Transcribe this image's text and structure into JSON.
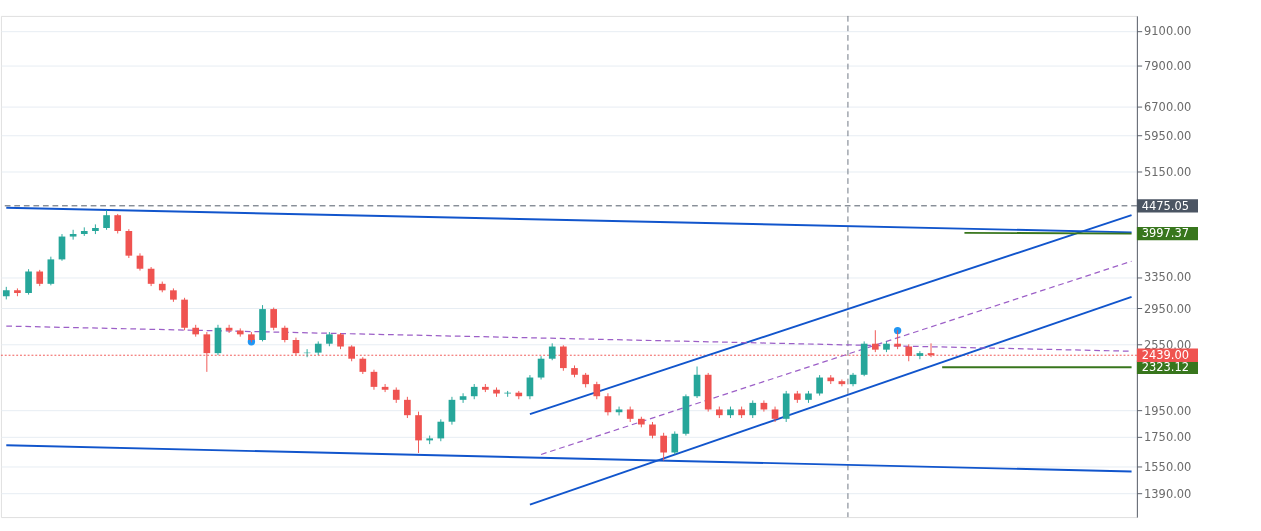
{
  "chart_data": {
    "type": "candlestick",
    "log": "y",
    "grid": "y",
    "tick_labels": "y",
    "categories": [
      null,
      null,
      null,
      null,
      null,
      null,
      null,
      null,
      null,
      null,
      null,
      null,
      null,
      null,
      null,
      null,
      null,
      null,
      null,
      null,
      null,
      null,
      null,
      null,
      null,
      null,
      null,
      null,
      null,
      null,
      null,
      null,
      null,
      null,
      null,
      null,
      null,
      null,
      null,
      null,
      null,
      null,
      null,
      null,
      null,
      null,
      null,
      null,
      null,
      null,
      null,
      null,
      null,
      null,
      null,
      null,
      null,
      null,
      null,
      null,
      null,
      null,
      null,
      null,
      null,
      null,
      null,
      null,
      null,
      null,
      null,
      null,
      null,
      null,
      null,
      null,
      null,
      null,
      null,
      null,
      null,
      null,
      null,
      null,
      null,
      null,
      null,
      null,
      null,
      null,
      null,
      null,
      null,
      null,
      null,
      null,
      null,
      null,
      null,
      null,
      null,
      null
    ],
    "ylim": [
      1264,
      9678
    ],
    "yticks": [
      {
        "value": 1390,
        "label": "1390.00"
      },
      {
        "value": 1550,
        "label": "1550.00"
      },
      {
        "value": 1750,
        "label": "1750.00"
      },
      {
        "value": 1950,
        "label": "1950.00"
      },
      {
        "value": 2550,
        "label": "2550.00"
      },
      {
        "value": 2950,
        "label": "2950.00"
      },
      {
        "value": 3350,
        "label": "3350.00"
      },
      {
        "value": 5150,
        "label": "5150.00"
      },
      {
        "value": 5950,
        "label": "5950.00"
      },
      {
        "value": 6700,
        "label": "6700.00"
      },
      {
        "value": 7900,
        "label": "7900.00"
      },
      {
        "value": 9100,
        "label": "9100.00"
      }
    ],
    "ref_lines": [
      {
        "axis": "y",
        "value": 4475.05,
        "label": "4475.05",
        "color": "#4b5563",
        "line_style": "dashed"
      },
      {
        "axis": "y",
        "value": 2439,
        "label": "2439.00",
        "color": "#ef5350",
        "line_style": "dotted"
      }
    ],
    "series": [
      {
        "ohlc": [
          [
            3100,
            3220,
            3060,
            3175
          ],
          [
            3175,
            3200,
            3100,
            3140
          ],
          [
            3140,
            3460,
            3120,
            3427
          ],
          [
            3427,
            3450,
            3230,
            3260
          ],
          [
            3260,
            3640,
            3240,
            3600
          ],
          [
            3600,
            3990,
            3580,
            3950
          ],
          [
            3950,
            4060,
            3900,
            3991
          ],
          [
            3991,
            4100,
            3960,
            4040
          ],
          [
            4040,
            4150,
            3990,
            4090
          ],
          [
            4090,
            4400,
            4060,
            4308
          ],
          [
            4308,
            4330,
            4000,
            4040
          ],
          [
            4040,
            4070,
            3620,
            3655
          ],
          [
            3655,
            3690,
            3440,
            3466
          ],
          [
            3466,
            3490,
            3230,
            3260
          ],
          [
            3260,
            3290,
            3150,
            3175
          ],
          [
            3175,
            3200,
            3030,
            3057
          ],
          [
            3057,
            3080,
            2700,
            2727
          ],
          [
            2727,
            2760,
            2630,
            2655
          ],
          [
            2655,
            2680,
            2280,
            2460
          ],
          [
            2460,
            2760,
            2440,
            2727
          ],
          [
            2727,
            2760,
            2670,
            2696
          ],
          [
            2696,
            2720,
            2630,
            2655
          ],
          [
            2655,
            2680,
            2570,
            2595
          ],
          [
            2595,
            2990,
            2580,
            2942
          ],
          [
            2942,
            2960,
            2700,
            2727
          ],
          [
            2727,
            2750,
            2570,
            2595
          ],
          [
            2595,
            2620,
            2440,
            2460
          ],
          [
            2460,
            2500,
            2420,
            2465
          ],
          [
            2465,
            2580,
            2440,
            2556
          ],
          [
            2556,
            2680,
            2530,
            2655
          ],
          [
            2655,
            2670,
            2500,
            2527
          ],
          [
            2527,
            2540,
            2380,
            2405
          ],
          [
            2405,
            2420,
            2260,
            2280
          ],
          [
            2280,
            2300,
            2120,
            2145
          ],
          [
            2145,
            2170,
            2100,
            2120
          ],
          [
            2120,
            2140,
            2010,
            2035
          ],
          [
            2035,
            2060,
            1890,
            1912
          ],
          [
            1912,
            1940,
            1640,
            1726
          ],
          [
            1726,
            1760,
            1700,
            1740
          ],
          [
            1740,
            1880,
            1720,
            1862
          ],
          [
            1862,
            2060,
            1840,
            2035
          ],
          [
            2035,
            2090,
            2010,
            2065
          ],
          [
            2065,
            2170,
            2040,
            2145
          ],
          [
            2145,
            2170,
            2100,
            2120
          ],
          [
            2120,
            2140,
            2060,
            2088
          ],
          [
            2088,
            2110,
            2060,
            2095
          ],
          [
            2095,
            2110,
            2040,
            2065
          ],
          [
            2065,
            2250,
            2040,
            2228
          ],
          [
            2228,
            2430,
            2210,
            2405
          ],
          [
            2405,
            2560,
            2390,
            2527
          ],
          [
            2527,
            2540,
            2290,
            2315
          ],
          [
            2315,
            2340,
            2230,
            2253
          ],
          [
            2253,
            2270,
            2140,
            2169
          ],
          [
            2169,
            2190,
            2040,
            2065
          ],
          [
            2065,
            2090,
            1910,
            1935
          ],
          [
            1935,
            1980,
            1910,
            1957
          ],
          [
            1957,
            1980,
            1860,
            1884
          ],
          [
            1884,
            1900,
            1820,
            1841
          ],
          [
            1841,
            1860,
            1740,
            1759
          ],
          [
            1759,
            1780,
            1590,
            1643
          ],
          [
            1643,
            1790,
            1630,
            1773
          ],
          [
            1773,
            2080,
            1760,
            2065
          ],
          [
            2065,
            2330,
            2050,
            2253
          ],
          [
            2253,
            2270,
            1940,
            1957
          ],
          [
            1957,
            1980,
            1890,
            1912
          ],
          [
            1912,
            1980,
            1890,
            1957
          ],
          [
            1957,
            1980,
            1890,
            1912
          ],
          [
            1912,
            2030,
            1890,
            2010
          ],
          [
            2010,
            2030,
            1940,
            1957
          ],
          [
            1957,
            1980,
            1860,
            1884
          ],
          [
            1884,
            2110,
            1860,
            2088
          ],
          [
            2088,
            2110,
            2010,
            2035
          ],
          [
            2035,
            2110,
            2010,
            2088
          ],
          [
            2088,
            2250,
            2070,
            2228
          ],
          [
            2228,
            2250,
            2170,
            2195
          ],
          [
            2195,
            2210,
            2150,
            2169
          ],
          [
            2169,
            2270,
            2150,
            2253
          ],
          [
            2253,
            2580,
            2240,
            2556
          ],
          [
            2556,
            2700,
            2470,
            2495
          ],
          [
            2495,
            2580,
            2470,
            2556
          ],
          [
            2556,
            2700,
            2500,
            2527
          ],
          [
            2527,
            2550,
            2380,
            2432
          ],
          [
            2432,
            2480,
            2400,
            2460
          ],
          [
            2460,
            2560,
            2420,
            2439
          ],
          null,
          null,
          null,
          null,
          null,
          null,
          null,
          null,
          null,
          null,
          null,
          null,
          null,
          null,
          null,
          null,
          null,
          null
        ],
        "colors": [
          "#26a69a",
          "#ef5350",
          "#26a69a",
          "#ef5350",
          "#26a69a",
          "#26a69a",
          "#26a69a",
          "#26a69a",
          "#26a69a",
          "#26a69a",
          "#ef5350",
          "#ef5350",
          "#ef5350",
          "#ef5350",
          "#ef5350",
          "#ef5350",
          "#ef5350",
          "#ef5350",
          "#ef5350",
          "#26a69a",
          "#ef5350",
          "#ef5350",
          "#ef5350",
          "#26a69a",
          "#ef5350",
          "#ef5350",
          "#ef5350",
          "#26a69a",
          "#26a69a",
          "#26a69a",
          "#ef5350",
          "#ef5350",
          "#ef5350",
          "#ef5350",
          "#ef5350",
          "#ef5350",
          "#ef5350",
          "#ef5350",
          "#26a69a",
          "#26a69a",
          "#26a69a",
          "#26a69a",
          "#26a69a",
          "#ef5350",
          "#ef5350",
          "#26a69a",
          "#ef5350",
          "#26a69a",
          "#26a69a",
          "#26a69a",
          "#ef5350",
          "#ef5350",
          "#ef5350",
          "#ef5350",
          "#ef5350",
          "#26a69a",
          "#ef5350",
          "#ef5350",
          "#ef5350",
          "#ef5350",
          "#26a69a",
          "#26a69a",
          "#26a69a",
          "#ef5350",
          "#ef5350",
          "#26a69a",
          "#ef5350",
          "#26a69a",
          "#ef5350",
          "#ef5350",
          "#26a69a",
          "#ef5350",
          "#26a69a",
          "#26a69a",
          "#ef5350",
          "#ef5350",
          "#26a69a",
          "#26a69a",
          "#ef5350",
          "#26a69a",
          "#ef5350",
          "#ef5350",
          "#26a69a",
          "#ef5350",
          null,
          null,
          null,
          null,
          null,
          null,
          null,
          null,
          null,
          null,
          null,
          null,
          null,
          null,
          null,
          null,
          null,
          null
        ]
      },
      {
        "type": "line",
        "color": "#1155cc",
        "line_style": "solid",
        "values": [
          4440,
          null,
          null,
          null,
          null,
          null,
          null,
          null,
          null,
          null,
          null,
          null,
          null,
          null,
          null,
          null,
          null,
          null,
          null,
          null,
          null,
          null,
          null,
          null,
          null,
          null,
          null,
          null,
          null,
          null,
          null,
          null,
          null,
          null,
          null,
          null,
          null,
          null,
          null,
          null,
          null,
          null,
          null,
          null,
          null,
          null,
          null,
          null,
          null,
          null,
          null,
          null,
          null,
          null,
          null,
          null,
          null,
          null,
          null,
          null,
          null,
          null,
          null,
          null,
          null,
          null,
          null,
          null,
          null,
          null,
          null,
          null,
          null,
          null,
          null,
          null,
          null,
          null,
          null,
          null,
          null,
          null,
          null,
          null,
          null,
          null,
          null,
          null,
          null,
          null,
          null,
          null,
          null,
          null,
          null,
          null,
          null,
          null,
          null,
          null,
          null,
          4018
        ]
      },
      {
        "type": "line",
        "color": "#1155cc",
        "line_style": "solid",
        "values": [
          1692,
          null,
          null,
          null,
          null,
          null,
          null,
          null,
          null,
          null,
          null,
          null,
          null,
          null,
          null,
          null,
          null,
          null,
          null,
          null,
          null,
          null,
          null,
          null,
          null,
          null,
          null,
          null,
          null,
          null,
          null,
          null,
          null,
          null,
          null,
          null,
          null,
          null,
          null,
          null,
          null,
          null,
          null,
          null,
          null,
          null,
          null,
          null,
          null,
          null,
          null,
          null,
          null,
          null,
          null,
          null,
          null,
          null,
          null,
          null,
          null,
          null,
          null,
          null,
          null,
          null,
          null,
          null,
          null,
          null,
          null,
          null,
          null,
          null,
          null,
          null,
          null,
          null,
          null,
          null,
          null,
          null,
          null,
          null,
          null,
          null,
          null,
          null,
          null,
          null,
          null,
          null,
          null,
          null,
          null,
          null,
          null,
          null,
          null,
          null,
          null,
          1521
        ]
      },
      {
        "type": "line",
        "color": "#1155cc",
        "line_style": "solid",
        "values": [
          null,
          null,
          null,
          null,
          null,
          null,
          null,
          null,
          null,
          null,
          null,
          null,
          null,
          null,
          null,
          null,
          null,
          null,
          null,
          null,
          null,
          null,
          null,
          null,
          null,
          null,
          null,
          null,
          null,
          null,
          null,
          null,
          null,
          null,
          null,
          null,
          null,
          null,
          null,
          null,
          null,
          null,
          null,
          null,
          null,
          null,
          null,
          1920,
          null,
          null,
          null,
          null,
          null,
          null,
          null,
          null,
          null,
          null,
          null,
          null,
          null,
          null,
          null,
          null,
          null,
          null,
          null,
          null,
          null,
          null,
          null,
          null,
          null,
          null,
          null,
          null,
          null,
          null,
          null,
          null,
          null,
          null,
          null,
          null,
          null,
          null,
          null,
          null,
          null,
          null,
          null,
          null,
          null,
          null,
          null,
          null,
          null,
          null,
          null,
          null,
          null,
          4308
        ]
      },
      {
        "type": "line",
        "color": "#1155cc",
        "line_style": "solid",
        "values": [
          null,
          null,
          null,
          null,
          null,
          null,
          null,
          null,
          null,
          null,
          null,
          null,
          null,
          null,
          null,
          null,
          null,
          null,
          null,
          null,
          null,
          null,
          null,
          null,
          null,
          null,
          null,
          null,
          null,
          null,
          null,
          null,
          null,
          null,
          null,
          null,
          null,
          null,
          null,
          null,
          null,
          null,
          null,
          null,
          null,
          null,
          null,
          1330,
          null,
          null,
          null,
          null,
          null,
          null,
          null,
          null,
          null,
          null,
          null,
          null,
          null,
          null,
          null,
          null,
          null,
          null,
          null,
          null,
          null,
          null,
          null,
          null,
          null,
          null,
          null,
          null,
          null,
          null,
          null,
          null,
          null,
          null,
          null,
          null,
          null,
          null,
          null,
          null,
          null,
          null,
          null,
          null,
          null,
          null,
          null,
          null,
          null,
          null,
          null,
          null,
          null,
          3092
        ]
      },
      {
        "type": "line",
        "color": "#9c5fc7",
        "line_style": "dashed",
        "values": [
          null,
          null,
          null,
          null,
          null,
          null,
          null,
          null,
          null,
          null,
          null,
          null,
          null,
          null,
          null,
          null,
          null,
          null,
          null,
          null,
          null,
          null,
          null,
          null,
          null,
          null,
          null,
          null,
          null,
          null,
          null,
          null,
          null,
          null,
          null,
          null,
          null,
          null,
          null,
          null,
          null,
          null,
          null,
          null,
          null,
          null,
          null,
          null,
          1630,
          null,
          null,
          null,
          null,
          null,
          null,
          null,
          null,
          null,
          null,
          null,
          null,
          null,
          null,
          null,
          null,
          null,
          null,
          null,
          null,
          null,
          null,
          null,
          null,
          null,
          null,
          null,
          null,
          null,
          null,
          null,
          null,
          null,
          null,
          null,
          null,
          null,
          null,
          null,
          null,
          null,
          null,
          null,
          null,
          null,
          null,
          null,
          null,
          null,
          null,
          null,
          null,
          3573
        ]
      },
      {
        "type": "line",
        "color": "#9c5fc7",
        "line_style": "dashed",
        "values": [
          2746,
          null,
          null,
          null,
          null,
          null,
          null,
          null,
          null,
          null,
          null,
          null,
          null,
          null,
          null,
          null,
          null,
          null,
          null,
          null,
          null,
          null,
          null,
          null,
          null,
          null,
          null,
          null,
          null,
          null,
          null,
          null,
          null,
          null,
          null,
          null,
          null,
          null,
          null,
          null,
          null,
          null,
          null,
          null,
          null,
          null,
          null,
          null,
          null,
          null,
          null,
          null,
          null,
          null,
          null,
          null,
          null,
          null,
          null,
          null,
          null,
          null,
          null,
          null,
          null,
          null,
          null,
          null,
          null,
          null,
          null,
          null,
          null,
          null,
          null,
          null,
          null,
          null,
          null,
          null,
          null,
          null,
          null,
          null,
          null,
          null,
          null,
          null,
          null,
          null,
          null,
          null,
          null,
          null,
          null,
          null,
          null,
          null,
          null,
          null,
          null,
          2479
        ]
      },
      {
        "type": "line",
        "color": "#38761d",
        "line_style": "solid",
        "values": [
          null,
          null,
          null,
          null,
          null,
          null,
          null,
          null,
          null,
          null,
          null,
          null,
          null,
          null,
          null,
          null,
          null,
          null,
          null,
          null,
          null,
          null,
          null,
          null,
          null,
          null,
          null,
          null,
          null,
          null,
          null,
          null,
          null,
          null,
          null,
          null,
          null,
          null,
          null,
          null,
          null,
          null,
          null,
          null,
          null,
          null,
          null,
          null,
          null,
          null,
          null,
          null,
          null,
          null,
          null,
          null,
          null,
          null,
          null,
          null,
          null,
          null,
          null,
          null,
          null,
          null,
          null,
          null,
          null,
          null,
          null,
          null,
          null,
          null,
          null,
          null,
          null,
          null,
          null,
          null,
          null,
          null,
          null,
          null,
          null,
          null,
          4010,
          null,
          null,
          null,
          null,
          null,
          null,
          null,
          null,
          null,
          null,
          null,
          null,
          null,
          null,
          3997.37
        ],
        "value_labels": [
          null,
          null,
          null,
          null,
          null,
          null,
          null,
          null,
          null,
          null,
          null,
          null,
          null,
          null,
          null,
          null,
          null,
          null,
          null,
          null,
          null,
          null,
          null,
          null,
          null,
          null,
          null,
          null,
          null,
          null,
          null,
          null,
          null,
          null,
          null,
          null,
          null,
          null,
          null,
          null,
          null,
          null,
          null,
          null,
          null,
          null,
          null,
          null,
          null,
          null,
          null,
          null,
          null,
          null,
          null,
          null,
          null,
          null,
          null,
          null,
          null,
          null,
          null,
          null,
          null,
          null,
          null,
          null,
          null,
          null,
          null,
          null,
          null,
          null,
          null,
          null,
          null,
          null,
          null,
          null,
          null,
          null,
          null,
          null,
          null,
          null,
          null,
          null,
          null,
          null,
          null,
          null,
          null,
          null,
          null,
          null,
          null,
          null,
          null,
          null,
          null,
          "3997.37"
        ]
      },
      {
        "type": "line",
        "color": "#38761d",
        "line_style": "solid",
        "values": [
          null,
          null,
          null,
          null,
          null,
          null,
          null,
          null,
          null,
          null,
          null,
          null,
          null,
          null,
          null,
          null,
          null,
          null,
          null,
          null,
          null,
          null,
          null,
          null,
          null,
          null,
          null,
          null,
          null,
          null,
          null,
          null,
          null,
          null,
          null,
          null,
          null,
          null,
          null,
          null,
          null,
          null,
          null,
          null,
          null,
          null,
          null,
          null,
          null,
          null,
          null,
          null,
          null,
          null,
          null,
          null,
          null,
          null,
          null,
          null,
          null,
          null,
          null,
          null,
          null,
          null,
          null,
          null,
          null,
          null,
          null,
          null,
          null,
          null,
          null,
          null,
          null,
          null,
          null,
          null,
          null,
          null,
          null,
          null,
          2323.12,
          null,
          null,
          null,
          null,
          null,
          null,
          null,
          null,
          null,
          null,
          null,
          null,
          null,
          null,
          null,
          null,
          2323.12
        ],
        "value_labels": [
          null,
          null,
          null,
          null,
          null,
          null,
          null,
          null,
          null,
          null,
          null,
          null,
          null,
          null,
          null,
          null,
          null,
          null,
          null,
          null,
          null,
          null,
          null,
          null,
          null,
          null,
          null,
          null,
          null,
          null,
          null,
          null,
          null,
          null,
          null,
          null,
          null,
          null,
          null,
          null,
          null,
          null,
          null,
          null,
          null,
          null,
          null,
          null,
          null,
          null,
          null,
          null,
          null,
          null,
          null,
          null,
          null,
          null,
          null,
          null,
          null,
          null,
          null,
          null,
          null,
          null,
          null,
          null,
          null,
          null,
          null,
          null,
          null,
          null,
          null,
          null,
          null,
          null,
          null,
          null,
          null,
          null,
          null,
          null,
          null,
          null,
          null,
          null,
          null,
          null,
          null,
          null,
          null,
          null,
          null,
          null,
          null,
          null,
          null,
          null,
          null,
          "2323.12"
        ]
      },
      {
        "type": "scatter",
        "color": "#2196f3",
        "marker": "circle",
        "values": [
          null,
          null,
          null,
          null,
          null,
          null,
          null,
          null,
          null,
          null,
          null,
          null,
          null,
          null,
          null,
          null,
          null,
          null,
          null,
          null,
          null,
          null,
          2576,
          null,
          null,
          null,
          null,
          null,
          null,
          null,
          null,
          null,
          null,
          null,
          null,
          null,
          null,
          null,
          null,
          null,
          null,
          null,
          null,
          null,
          null,
          null,
          null,
          null,
          null,
          null,
          null,
          null,
          null,
          null,
          null,
          null,
          null,
          null,
          null,
          null,
          null,
          null,
          null,
          null,
          null,
          null,
          null,
          null,
          null,
          null,
          null,
          null,
          null,
          null,
          null,
          null,
          null,
          null,
          null,
          null,
          2696,
          null,
          null,
          null,
          null,
          null,
          null,
          null,
          null,
          null,
          null,
          null,
          null,
          null,
          null,
          null,
          null,
          null,
          null,
          null,
          null,
          null
        ]
      }
    ]
  }
}
